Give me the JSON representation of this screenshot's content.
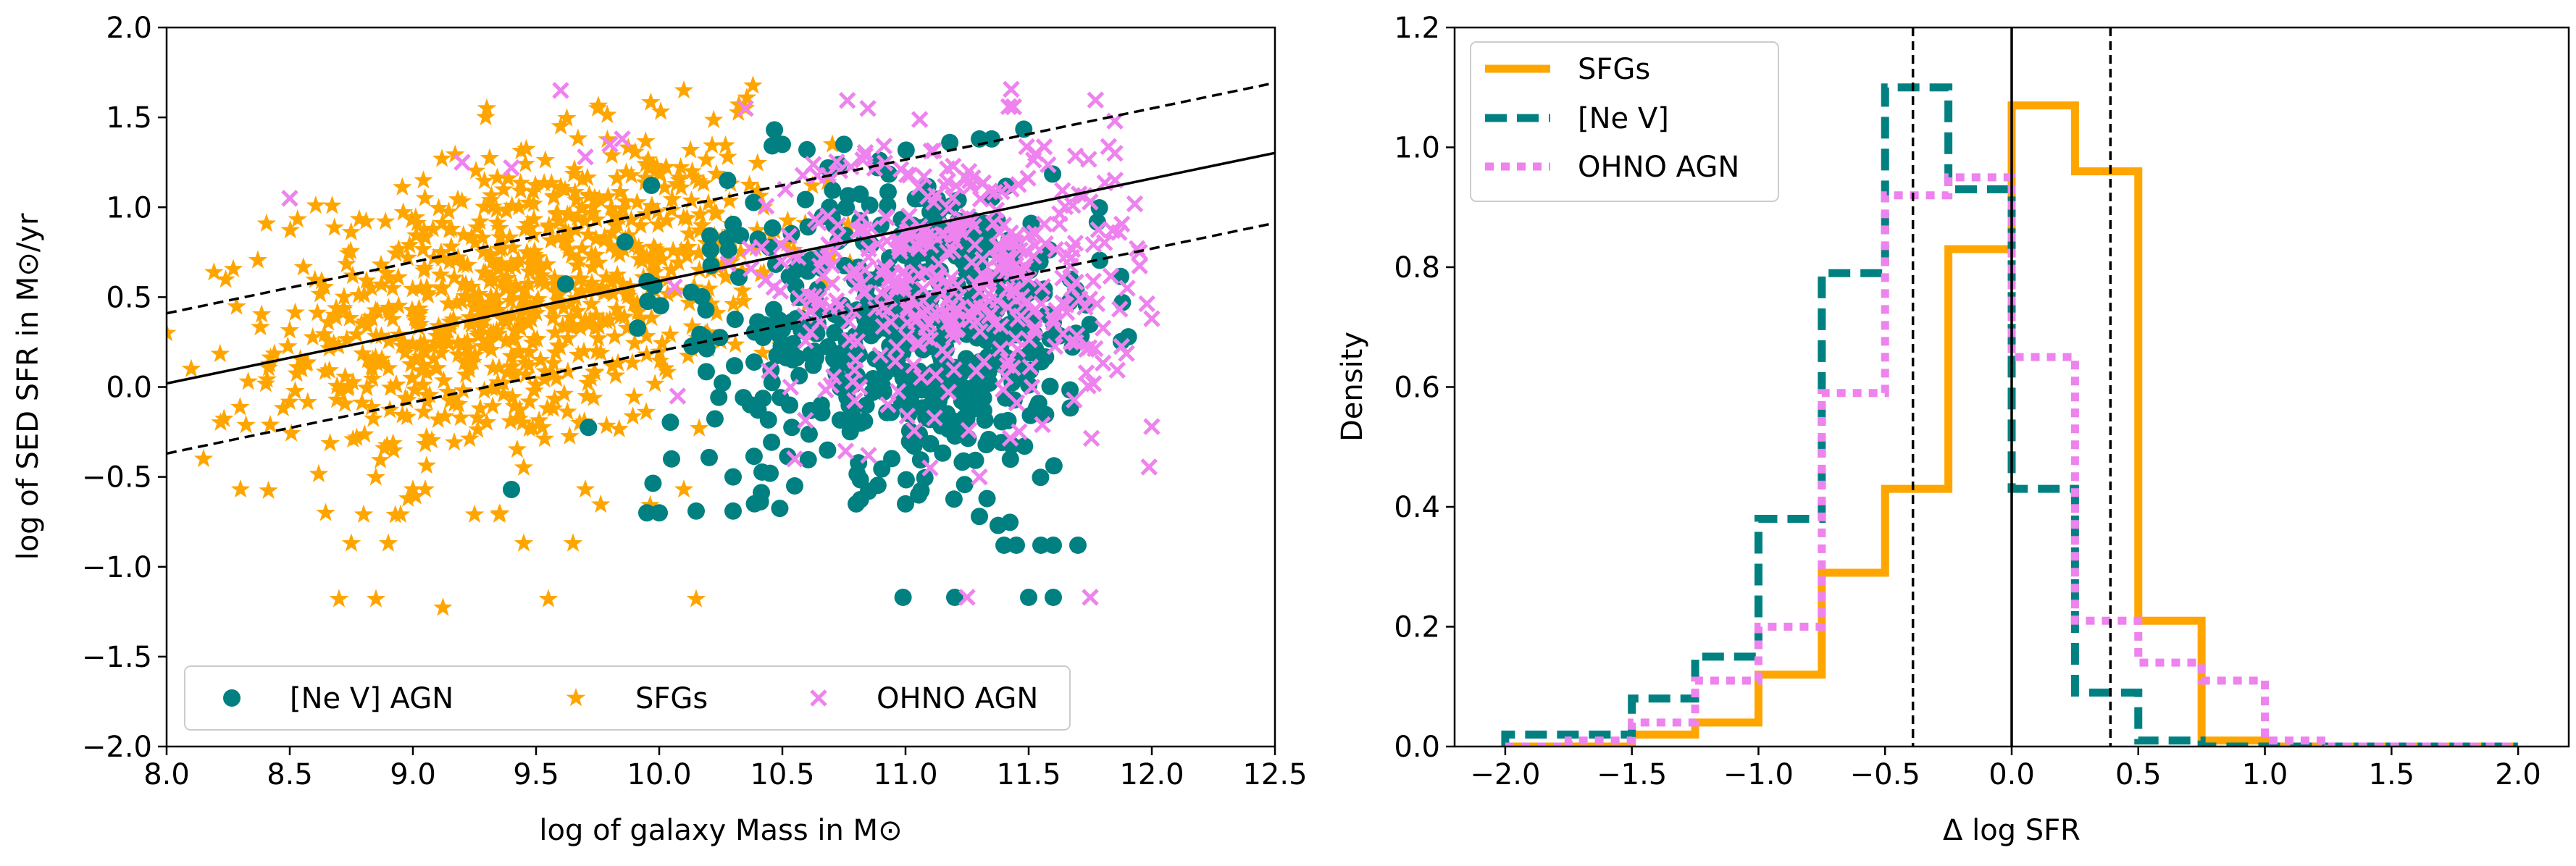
{
  "chart_data": [
    {
      "type": "scatter",
      "xlabel": "log of galaxy Mass in M⊙",
      "ylabel": "log of SED SFR in M⊙/yr",
      "xlim": [
        8.0,
        12.5
      ],
      "ylim": [
        -2.0,
        2.0
      ],
      "xticks": [
        "8.0",
        "8.5",
        "9.0",
        "9.5",
        "10.0",
        "10.5",
        "11.0",
        "11.5",
        "12.0",
        "12.5"
      ],
      "yticks": [
        "−2.0",
        "−1.5",
        "−1.0",
        "−0.5",
        "0.0",
        "0.5",
        "1.0",
        "1.5",
        "2.0"
      ],
      "legend": {
        "placement": "lower-center",
        "columns": 3
      },
      "main_sequence": {
        "slope": 0.285,
        "intercept_at_8": 0.02,
        "dashed_offset": 0.39
      },
      "series": [
        {
          "name": "[Ne V] AGN",
          "marker": "circle",
          "color": "#008080",
          "clusters": [
            {
              "cx": 11.1,
              "cy": 0.35,
              "sx": 0.35,
              "sy": 0.42,
              "n": 520
            },
            {
              "cx": 10.4,
              "cy": 0.3,
              "sx": 0.35,
              "sy": 0.45,
              "n": 60
            }
          ],
          "points": [
            [
              9.4,
              -0.57
            ],
            [
              9.95,
              -0.7
            ],
            [
              10.0,
              -0.7
            ],
            [
              10.15,
              -0.69
            ],
            [
              10.3,
              -0.69
            ],
            [
              10.05,
              -0.4
            ],
            [
              10.3,
              -0.5
            ],
            [
              10.45,
              -0.48
            ],
            [
              10.55,
              -0.55
            ],
            [
              10.8,
              -0.65
            ],
            [
              11.0,
              -0.65
            ],
            [
              11.3,
              -0.72
            ],
            [
              11.4,
              -0.88
            ],
            [
              11.45,
              -0.88
            ],
            [
              11.55,
              -0.88
            ],
            [
              11.6,
              -0.88
            ],
            [
              11.7,
              -0.88
            ],
            [
              10.99,
              -1.17
            ],
            [
              11.2,
              -1.17
            ],
            [
              11.5,
              -1.17
            ],
            [
              11.6,
              -1.17
            ],
            [
              10.5,
              1.35
            ],
            [
              10.6,
              1.32
            ],
            [
              10.75,
              1.35
            ],
            [
              11.3,
              1.38
            ],
            [
              11.35,
              1.38
            ]
          ]
        },
        {
          "name": "SFGs",
          "marker": "star",
          "color": "#FFA500",
          "clusters": [
            {
              "cx": 9.35,
              "cy": 0.45,
              "sx": 0.45,
              "sy": 0.42,
              "n": 700
            },
            {
              "cx": 10.1,
              "cy": 0.75,
              "sx": 0.3,
              "sy": 0.35,
              "n": 120
            }
          ],
          "points": [
            [
              8.7,
              -1.18
            ],
            [
              8.85,
              -1.18
            ],
            [
              9.55,
              -1.18
            ],
            [
              10.15,
              -1.18
            ],
            [
              8.75,
              -0.87
            ],
            [
              8.9,
              -0.87
            ],
            [
              9.45,
              -0.87
            ],
            [
              9.65,
              -0.87
            ],
            [
              8.8,
              -0.71
            ],
            [
              8.95,
              -0.71
            ],
            [
              9.25,
              -0.71
            ],
            [
              9.35,
              -0.71
            ],
            [
              8.3,
              -0.57
            ],
            [
              9.0,
              -0.57
            ],
            [
              9.05,
              -0.57
            ],
            [
              9.7,
              -0.57
            ],
            [
              10.1,
              -0.57
            ],
            [
              9.3,
              1.55
            ],
            [
              9.75,
              1.55
            ],
            [
              10.1,
              1.65
            ],
            [
              10.35,
              1.55
            ],
            [
              9.6,
              1.45
            ],
            [
              8.15,
              -0.4
            ],
            [
              8.1,
              0.1
            ],
            [
              8.0,
              0.3
            ]
          ]
        },
        {
          "name": "OHNO AGN",
          "marker": "x",
          "color": "#EE82EE",
          "clusters": [
            {
              "cx": 11.2,
              "cy": 0.65,
              "sx": 0.38,
              "sy": 0.38,
              "n": 420
            }
          ],
          "points": [
            [
              9.6,
              1.65
            ],
            [
              10.35,
              1.55
            ],
            [
              9.8,
              1.35
            ],
            [
              9.85,
              1.38
            ],
            [
              9.2,
              1.25
            ],
            [
              9.4,
              1.22
            ],
            [
              9.7,
              1.28
            ],
            [
              8.5,
              1.05
            ],
            [
              11.25,
              -1.17
            ],
            [
              11.75,
              -1.17
            ],
            [
              12.0,
              -0.22
            ],
            [
              11.9,
              0.55
            ],
            [
              12.0,
              0.38
            ],
            [
              11.85,
              1.3
            ],
            [
              11.85,
              1.48
            ],
            [
              11.95,
              0.75
            ],
            [
              10.55,
              -0.4
            ],
            [
              10.85,
              -0.38
            ],
            [
              11.1,
              -0.45
            ],
            [
              11.3,
              -0.5
            ]
          ]
        }
      ]
    },
    {
      "type": "histogram",
      "xlabel": "Δ log SFR",
      "ylabel": "Density",
      "xlim": [
        -2.2,
        2.2
      ],
      "ylim": [
        0.0,
        1.2
      ],
      "xticks": [
        "−2.0",
        "−1.5",
        "−1.0",
        "−0.5",
        "0.0",
        "0.5",
        "1.0",
        "1.5",
        "2.0"
      ],
      "yticks": [
        "0.0",
        "0.2",
        "0.4",
        "0.6",
        "0.8",
        "1.0",
        "1.2"
      ],
      "legend": {
        "placement": "top-left"
      },
      "vlines": [
        {
          "x": 0.0,
          "style": "solid"
        },
        {
          "x": -0.39,
          "style": "dashed"
        },
        {
          "x": 0.39,
          "style": "dashed"
        }
      ],
      "series": [
        {
          "name": "SFGs",
          "color": "#FFA500",
          "linestyle": "solid",
          "edges": [
            -2.0,
            -1.75,
            -1.5,
            -1.25,
            -1.0,
            -0.75,
            -0.5,
            -0.25,
            0.0,
            0.25,
            0.5,
            0.75,
            1.0,
            1.25,
            1.5,
            1.75,
            2.0
          ],
          "values": [
            0.0,
            0.0,
            0.02,
            0.04,
            0.12,
            0.29,
            0.43,
            0.83,
            1.07,
            0.96,
            0.21,
            0.01,
            0.0,
            0.0,
            0.0,
            0.0
          ]
        },
        {
          "name": "[Ne V]",
          "color": "#008080",
          "linestyle": "dashed",
          "edges": [
            -2.0,
            -1.75,
            -1.5,
            -1.25,
            -1.0,
            -0.75,
            -0.5,
            -0.25,
            0.0,
            0.25,
            0.5,
            0.75,
            1.0,
            1.25,
            1.5,
            1.75,
            2.0
          ],
          "values": [
            0.02,
            0.02,
            0.08,
            0.15,
            0.38,
            0.79,
            1.1,
            0.93,
            0.43,
            0.09,
            0.01,
            0.0,
            0.0,
            0.0,
            0.0,
            0.0
          ]
        },
        {
          "name": "OHNO AGN",
          "color": "#EE82EE",
          "linestyle": "dotted",
          "edges": [
            -2.0,
            -1.75,
            -1.5,
            -1.25,
            -1.0,
            -0.75,
            -0.5,
            -0.25,
            0.0,
            0.25,
            0.5,
            0.75,
            1.0,
            1.25,
            1.5,
            1.75,
            2.0
          ],
          "values": [
            0.0,
            0.01,
            0.04,
            0.11,
            0.2,
            0.59,
            0.92,
            0.95,
            0.65,
            0.21,
            0.14,
            0.11,
            0.01,
            0.0,
            0.0,
            0.0
          ]
        }
      ]
    }
  ]
}
